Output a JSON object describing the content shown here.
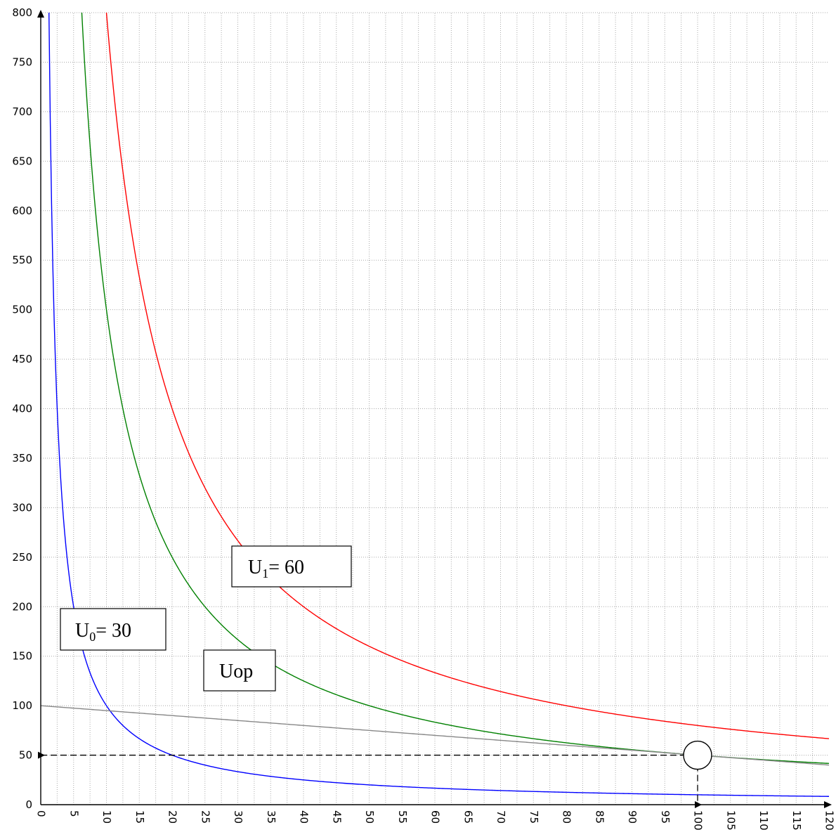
{
  "chart_data": {
    "type": "line",
    "title": "",
    "xlabel": "",
    "ylabel": "",
    "xlim": [
      0,
      120
    ],
    "ylim": [
      0,
      800
    ],
    "x_ticks": [
      0,
      5,
      10,
      15,
      20,
      25,
      30,
      35,
      40,
      45,
      50,
      55,
      60,
      65,
      70,
      75,
      80,
      85,
      90,
      95,
      100,
      105,
      110,
      115,
      120
    ],
    "y_ticks": [
      0,
      50,
      100,
      150,
      200,
      250,
      300,
      350,
      400,
      450,
      500,
      550,
      600,
      650,
      700,
      750,
      800
    ],
    "x_minor_step": 2.5,
    "grid": true,
    "grid_style": "dotted",
    "series": [
      {
        "label": "U₀= 30",
        "kind": "curve",
        "color": "#0000ff",
        "formula": "y = 1000 / x",
        "x": [
          1.25,
          2,
          3,
          5,
          7.5,
          10,
          15,
          20,
          30,
          40,
          50,
          60,
          80,
          100,
          120
        ],
        "y": [
          800,
          500,
          333.3,
          200,
          133.3,
          100,
          66.7,
          50,
          33.3,
          25,
          20,
          16.7,
          12.5,
          10,
          8.3
        ]
      },
      {
        "label": "Uop",
        "kind": "curve",
        "color": "#008000",
        "formula": "y = 5000 / x",
        "x": [
          6.25,
          8,
          10,
          15,
          20,
          25,
          30,
          40,
          50,
          60,
          80,
          100,
          120
        ],
        "y": [
          800,
          625,
          500,
          333.3,
          250,
          200,
          166.7,
          125,
          100,
          83.3,
          62.5,
          50,
          41.7
        ]
      },
      {
        "label": "U₁= 60",
        "kind": "curve",
        "color": "#ff0000",
        "formula": "y = 8000 / x",
        "x": [
          10,
          15,
          20,
          30,
          40,
          50,
          60,
          80,
          100,
          120
        ],
        "y": [
          800,
          533.3,
          400,
          266.7,
          200,
          160,
          133.3,
          100,
          80,
          66.7
        ]
      },
      {
        "label": "",
        "kind": "line",
        "color": "#888888",
        "formula": "y = 100 - x / 2",
        "x": [
          0,
          120
        ],
        "y": [
          100,
          40
        ]
      }
    ],
    "annotations": {
      "optimum_point": {
        "x": 100,
        "y": 50
      },
      "callouts": [
        {
          "id": "u0",
          "prefix": "U",
          "sub": "0",
          "suffix": "= 30"
        },
        {
          "id": "u1",
          "prefix": "U",
          "sub": "1",
          "suffix": "= 60"
        },
        {
          "id": "uop",
          "prefix": "Uop",
          "sub": "",
          "suffix": ""
        }
      ]
    },
    "colors": {
      "axis": "#000000",
      "grid": "#aaaaaa",
      "guide": "#000000"
    }
  }
}
